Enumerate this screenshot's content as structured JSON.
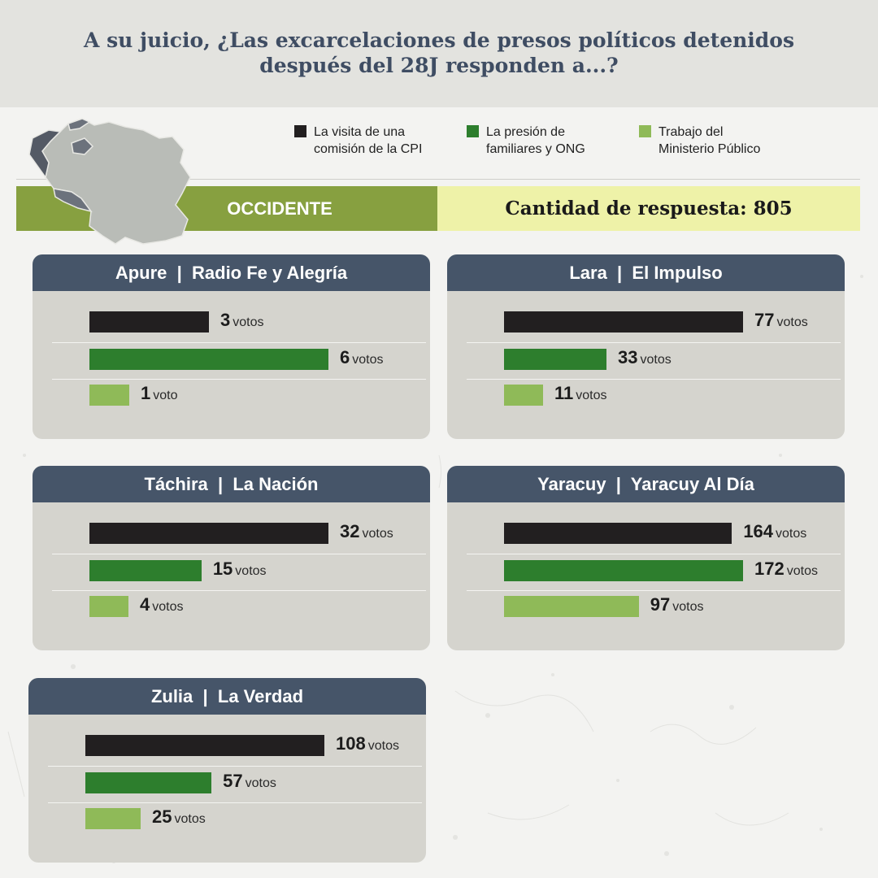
{
  "title_line1": "A su juicio, ¿Las excarcelaciones de presos políticos detenidos",
  "title_line2": "después del 28J responden a...?",
  "legend": [
    {
      "line1": "La visita de una",
      "line2": "comisión de la CPI",
      "color": "#221f20"
    },
    {
      "line1": "La presión de",
      "line2": "familiares y ONG",
      "color": "#2d7e2d"
    },
    {
      "line1": "Trabajo del",
      "line2": "Ministerio Público",
      "color": "#8fba58"
    }
  ],
  "region": "OCCIDENTE",
  "count_text": "Cantidad de respuesta: 805",
  "colors": {
    "header": "#465569",
    "region": "#87a040",
    "count": "#eef2a8",
    "card": "#d5d4ce"
  },
  "chart_data": {
    "type": "bar",
    "orientation": "horizontal",
    "series_names": [
      "La visita de una comisión de la CPI",
      "La presión de familiares y ONG",
      "Trabajo del Ministerio Público"
    ],
    "panels": [
      {
        "title": "Apure  |  Radio Fe y Alegría",
        "values": [
          3,
          6,
          1
        ],
        "units": [
          "votos",
          "votos",
          "voto"
        ]
      },
      {
        "title": "Lara  |  El Impulso",
        "values": [
          77,
          33,
          11
        ],
        "units": [
          "votos",
          "votos",
          "votos"
        ]
      },
      {
        "title": "Táchira  |  La Nación",
        "values": [
          32,
          15,
          4
        ],
        "units": [
          "votos",
          "votos",
          "votos"
        ]
      },
      {
        "title": "Yaracuy  |  Yaracuy Al Día",
        "values": [
          164,
          172,
          97
        ],
        "units": [
          "votos",
          "votos",
          "votos"
        ]
      },
      {
        "title": "Zulia  |  La Verdad",
        "values": [
          108,
          57,
          25
        ],
        "units": [
          "votos",
          "votos",
          "votos"
        ]
      }
    ]
  }
}
